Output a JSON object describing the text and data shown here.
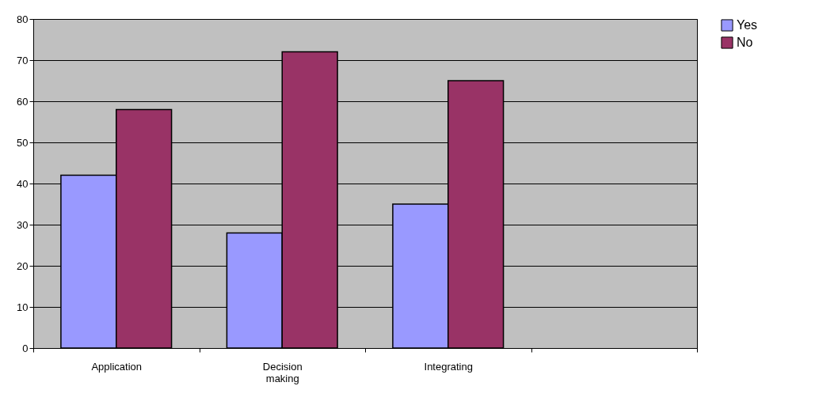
{
  "chart_data": {
    "type": "bar",
    "categories": [
      "Application",
      "Decision making",
      "Integrating",
      null
    ],
    "series": [
      {
        "name": "Yes",
        "color": "#9999ff",
        "values": [
          42,
          28,
          35,
          null
        ]
      },
      {
        "name": "No",
        "color": "#993366",
        "values": [
          58,
          72,
          65,
          null
        ]
      }
    ],
    "ylim": [
      0,
      80
    ],
    "yticks": [
      0,
      10,
      20,
      30,
      40,
      50,
      60,
      70,
      80
    ],
    "grid": "y",
    "legend": "right"
  }
}
